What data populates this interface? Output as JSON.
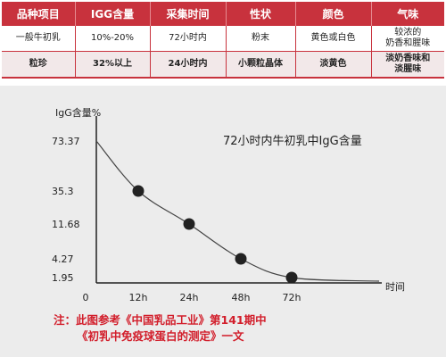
{
  "table": {
    "headers": [
      "品种项目",
      "IGG含量",
      "采集时间",
      "性状",
      "颜色",
      "气味"
    ],
    "rows": [
      [
        "一般牛初乳",
        "10%-20%",
        "72小时内",
        "粉末",
        "黄色或白色",
        "较浓的\n奶香和腥味"
      ],
      [
        "粒珍",
        "32%以上",
        "24小时内",
        "小颗粒晶体",
        "淡黄色",
        "淡奶香味和\n淡腥味"
      ]
    ]
  },
  "chart_data": {
    "type": "line",
    "title": "72小时内牛初乳中IgG含量",
    "ylabel": "IgG含量%",
    "xlabel": "时间",
    "x": [
      "0",
      "12h",
      "24h",
      "48h",
      "72h"
    ],
    "y_ticks": [
      "73.37",
      "35.3",
      "11.68",
      "4.27",
      "1.95"
    ],
    "series": [
      {
        "values": [
          73.37,
          35.3,
          11.68,
          4.27,
          1.95
        ]
      }
    ],
    "grid": false,
    "colors": {
      "line": "#444444",
      "marker": "#222222"
    }
  },
  "note": {
    "line1": "注：此图参考《中国乳品工业》第141期中",
    "line2": "《初乳中免疫球蛋白的测定》一文"
  }
}
